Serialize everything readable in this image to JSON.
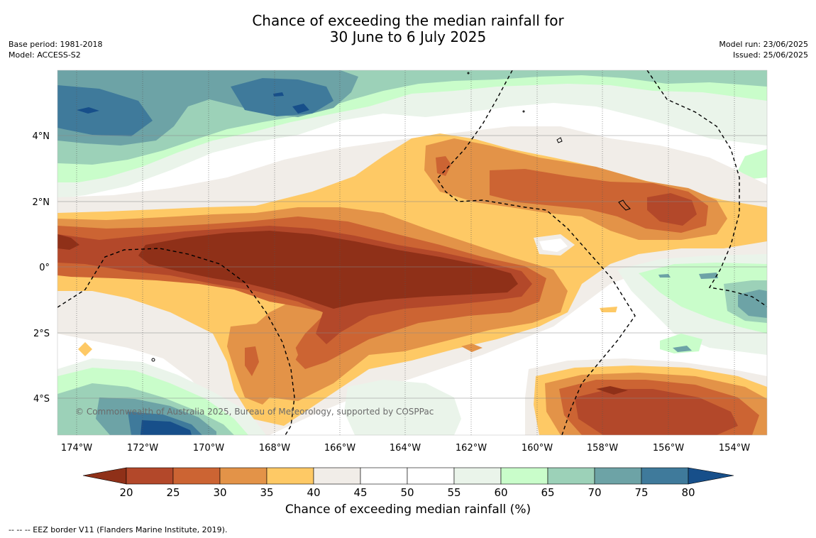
{
  "title": {
    "line1": "Chance of exceeding the median rainfall for",
    "line2": "30 June to 6 July 2025"
  },
  "meta": {
    "base_period": "Base period: 1981-2018",
    "model": "Model: ACCESS-S2",
    "model_run": "Model run: 23/06/2025",
    "issued": "Issued: 25/06/2025"
  },
  "map": {
    "lon_labels": [
      "174°W",
      "172°W",
      "170°W",
      "168°W",
      "166°W",
      "164°W",
      "162°W",
      "160°W",
      "158°W",
      "156°W",
      "154°W"
    ],
    "lat_labels": [
      "4°N",
      "2°N",
      "0°",
      "2°S",
      "4°S"
    ],
    "copyright": "© Commonwealth of Australia 2025, Bureau of Meteorology, supported by COSPPac"
  },
  "colorbar": {
    "title": "Chance of exceeding median rainfall (%)",
    "tick_labels": [
      "20",
      "25",
      "30",
      "35",
      "40",
      "45",
      "50",
      "55",
      "60",
      "65",
      "70",
      "75",
      "80"
    ],
    "colors": {
      "below_20": "#8f3018",
      "c20_25": "#b3482a",
      "c25_30": "#cc6433",
      "c30_35": "#e39348",
      "c35_40": "#fec965",
      "c40_45": "#f1ede8",
      "c45_50": "#ffffff",
      "c50_55": "#ffffff",
      "c55_60": "#eaf4ea",
      "c60_65": "#c9fdca",
      "c65_70": "#9cd1b8",
      "c70_75": "#6da3a6",
      "c75_80": "#3f7a9b",
      "above_80": "#174f8a"
    }
  },
  "footnote": "--  --  -- EEZ border V11 (Flanders Marine Institute, 2019)."
}
